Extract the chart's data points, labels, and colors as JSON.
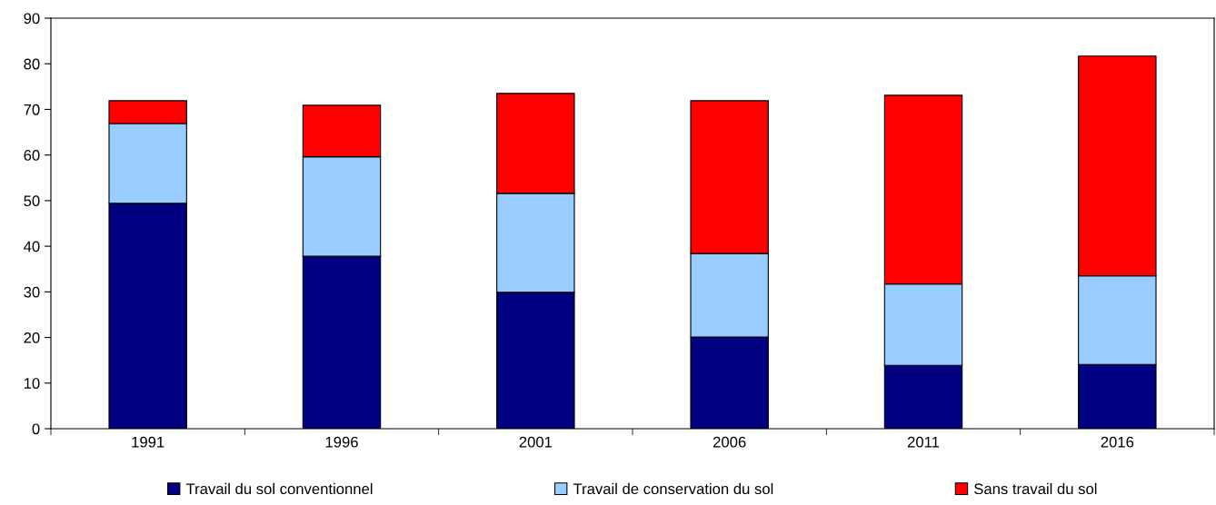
{
  "chart_data": {
    "type": "bar",
    "stacked": true,
    "categories": [
      "1991",
      "1996",
      "2001",
      "2006",
      "2011",
      "2016"
    ],
    "series": [
      {
        "name": "Travail du sol conventionnel",
        "color": "#000080",
        "values": [
          49.4,
          37.8,
          29.9,
          20.1,
          13.9,
          14.1
        ]
      },
      {
        "name": "Travail de conservation du sol",
        "color": "#99ccff",
        "values": [
          17.5,
          21.8,
          21.7,
          18.3,
          17.8,
          19.4
        ]
      },
      {
        "name": "Sans travail du sol",
        "color": "#ff0000",
        "values": [
          5.0,
          11.3,
          21.9,
          33.5,
          41.4,
          48.2
        ]
      }
    ],
    "ylim": [
      0,
      90
    ],
    "yticks": [
      0,
      10,
      20,
      30,
      40,
      50,
      60,
      70,
      80,
      90
    ],
    "grid": false,
    "legend": "bottom"
  }
}
